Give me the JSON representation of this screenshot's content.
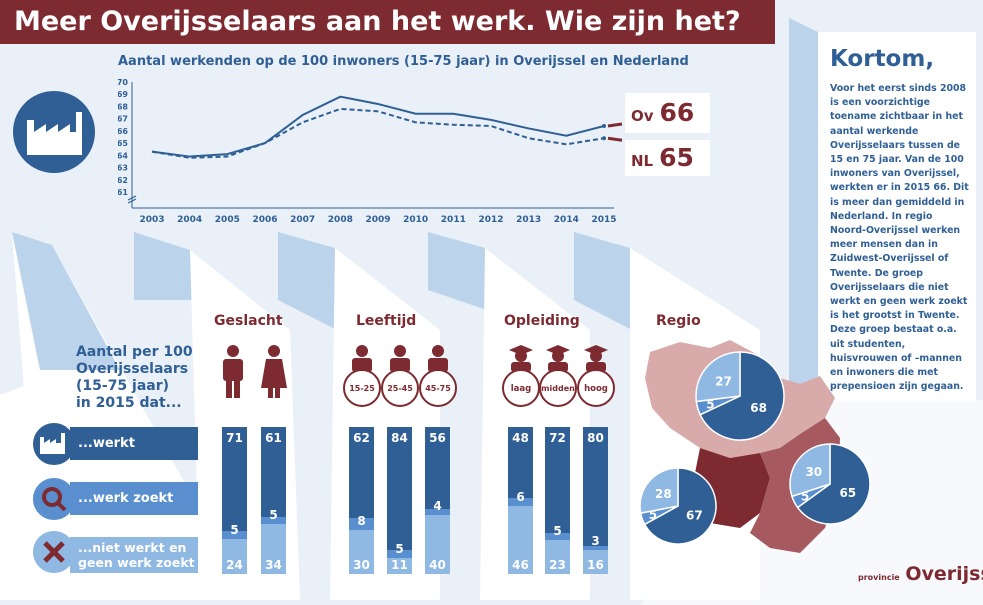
{
  "header": {
    "title": "Meer Overijsselaars aan het werk. Wie zijn het?"
  },
  "chart_data": [
    {
      "type": "line",
      "title": "Aantal werkenden op de 100 inwoners (15-75 jaar) in Overijssel en Nederland",
      "x": [
        "2003",
        "2004",
        "2005",
        "2006",
        "2007",
        "2008",
        "2009",
        "2010",
        "2011",
        "2012",
        "2013",
        "2014",
        "2015"
      ],
      "ylim": [
        61,
        70
      ],
      "yticks": [
        61,
        62,
        63,
        64,
        65,
        66,
        67,
        68,
        69,
        70
      ],
      "series": [
        {
          "name": "Ov",
          "style": "solid",
          "values": [
            64.3,
            63.9,
            64.1,
            65.0,
            67.3,
            68.8,
            68.2,
            67.4,
            67.4,
            66.9,
            66.2,
            65.6,
            66.4
          ]
        },
        {
          "name": "NL",
          "style": "dashed",
          "values": [
            64.3,
            63.8,
            63.9,
            65.0,
            66.7,
            67.8,
            67.6,
            66.7,
            66.5,
            66.4,
            65.4,
            64.9,
            65.4
          ]
        }
      ],
      "callouts": [
        {
          "label": "Ov",
          "value": "66"
        },
        {
          "label": "NL",
          "value": "65"
        }
      ]
    },
    {
      "type": "bar",
      "stacked": true,
      "intro": [
        "Aantal per 100",
        "Overijsselaars",
        "(15-75 jaar)",
        "in 2015 dat..."
      ],
      "rows": [
        "...werkt",
        "...werk zoekt",
        "...niet werkt en geen werk zoekt"
      ],
      "groups": [
        {
          "name": "Geslacht",
          "bars": [
            {
              "icon": "man-icon",
              "label": "",
              "werkt": 71,
              "zoekt": 5,
              "niet": 24
            },
            {
              "icon": "woman-icon",
              "label": "",
              "werkt": 61,
              "zoekt": 5,
              "niet": 34
            }
          ]
        },
        {
          "name": "Leeftijd",
          "bars": [
            {
              "icon": "person-icon",
              "label": "15-25",
              "werkt": 62,
              "zoekt": 8,
              "niet": 30
            },
            {
              "icon": "person-icon",
              "label": "25-45",
              "werkt": 84,
              "zoekt": 5,
              "niet": 11
            },
            {
              "icon": "person-icon",
              "label": "45-75",
              "werkt": 56,
              "zoekt": 4,
              "niet": 40
            }
          ]
        },
        {
          "name": "Opleiding",
          "bars": [
            {
              "icon": "graduate-icon",
              "label": "laag",
              "werkt": 48,
              "zoekt": 6,
              "niet": 46
            },
            {
              "icon": "graduate-icon",
              "label": "midden",
              "werkt": 72,
              "zoekt": 5,
              "niet": 23
            },
            {
              "icon": "graduate-icon",
              "label": "hoog",
              "werkt": 80,
              "zoekt": 3,
              "niet": 16
            }
          ]
        }
      ]
    },
    {
      "type": "pie",
      "title": "Regio",
      "regions": [
        {
          "werkt": 68,
          "zoekt": 5,
          "niet": 27
        },
        {
          "werkt": 67,
          "zoekt": 5,
          "niet": 28
        },
        {
          "werkt": 65,
          "zoekt": 5,
          "niet": 30
        }
      ]
    }
  ],
  "kortom": {
    "title": "Kortom,",
    "text": "Voor het eerst sinds 2008 is een voorzichtige toename zichtbaar in het aantal werkende Overijsselaars tussen de 15 en 75 jaar. Van de 100 inwoners van Overijssel, werkten er in 2015 66. Dit is meer dan gemiddeld in Nederland. In regio Noord-Overijssel werken meer mensen dan in Zuidwest-Overijssel of Twente. De groep Overijsselaars die niet werkt en geen werk zoekt is het grootst in Twente. Deze groep bestaat o.a. uit studenten, huisvrouwen of –mannen en inwoners die met prepensioen zijn gegaan."
  },
  "logo": {
    "small": "provincie",
    "big": "Overijssel"
  },
  "colors": {
    "maroon": "#7d2a31",
    "dark_blue": "#2f5f95",
    "mid_blue": "#5a8fcf",
    "light_blue": "#8fb8e3",
    "map_mid": "#a65a5f",
    "map_light": "#d8aaaa"
  }
}
